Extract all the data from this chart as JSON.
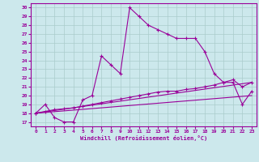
{
  "xlabel": "Windchill (Refroidissement éolien,°C)",
  "bg_color": "#cce8ec",
  "grid_color": "#aacccc",
  "line_color": "#990099",
  "xlim": [
    -0.5,
    23.5
  ],
  "ylim": [
    16.5,
    30.5
  ],
  "xticks": [
    0,
    1,
    2,
    3,
    4,
    5,
    6,
    7,
    8,
    9,
    10,
    11,
    12,
    13,
    14,
    15,
    16,
    17,
    18,
    19,
    20,
    21,
    22,
    23
  ],
  "yticks": [
    17,
    18,
    19,
    20,
    21,
    22,
    23,
    24,
    25,
    26,
    27,
    28,
    29,
    30
  ],
  "line1_x": [
    0,
    1,
    2,
    3,
    4,
    5,
    6,
    7,
    8,
    9,
    10,
    11,
    12,
    13,
    14,
    15,
    16,
    17,
    18,
    19,
    20,
    21,
    22,
    23
  ],
  "line1_y": [
    18.0,
    19.0,
    17.5,
    17.0,
    17.0,
    19.5,
    20.0,
    24.5,
    23.5,
    22.5,
    30.0,
    29.0,
    28.0,
    27.5,
    27.0,
    26.5,
    26.5,
    26.5,
    25.0,
    22.5,
    21.5,
    21.5,
    19.0,
    20.5
  ],
  "line2_x": [
    0,
    23
  ],
  "line2_y": [
    18.0,
    20.0
  ],
  "line3_x": [
    0,
    23
  ],
  "line3_y": [
    18.0,
    21.5
  ],
  "line4_x": [
    0,
    1,
    2,
    3,
    4,
    5,
    6,
    7,
    8,
    9,
    10,
    11,
    12,
    13,
    14,
    15,
    16,
    17,
    18,
    19,
    20,
    21,
    22,
    23
  ],
  "line4_y": [
    18.0,
    18.2,
    18.4,
    18.5,
    18.6,
    18.8,
    19.0,
    19.2,
    19.4,
    19.6,
    19.8,
    20.0,
    20.2,
    20.4,
    20.5,
    20.5,
    20.7,
    20.8,
    21.0,
    21.2,
    21.5,
    21.8,
    21.0,
    21.5
  ]
}
